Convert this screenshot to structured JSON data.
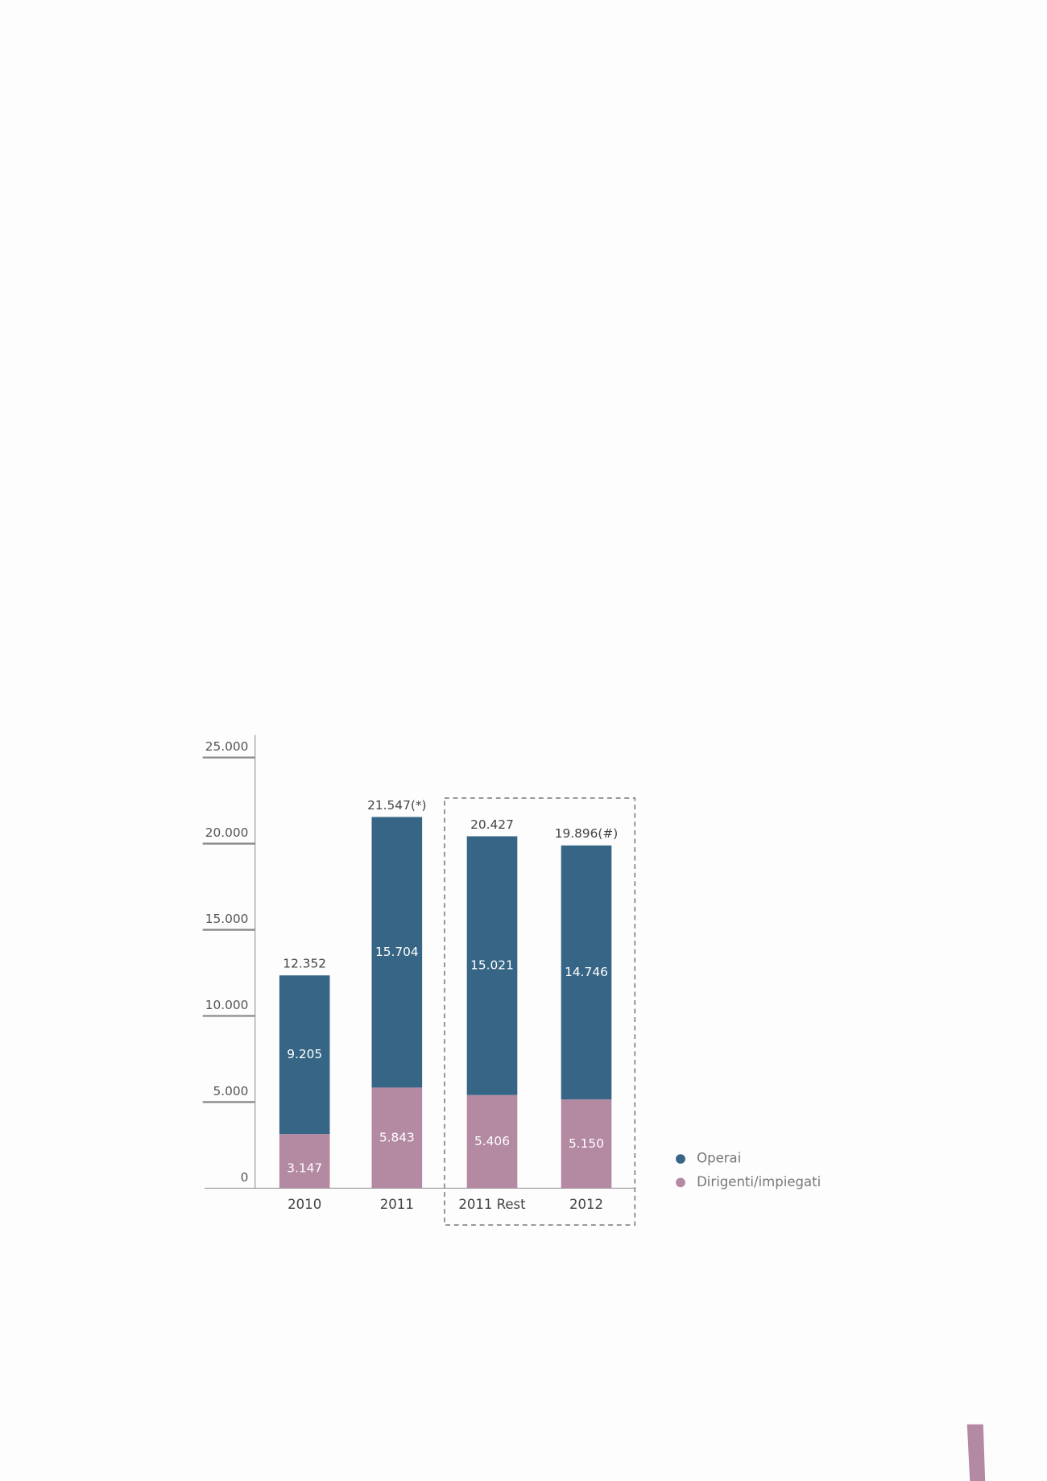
{
  "chart_data": {
    "type": "stacked_bar",
    "categories": [
      "2010",
      "2011",
      "2011 Rest",
      "2012"
    ],
    "series": [
      {
        "name": "Dirigenti/impiegati",
        "color": "#b48aa3",
        "values": [
          3147,
          5843,
          5406,
          5150
        ],
        "value_labels": [
          "3.147",
          "5.843",
          "5.406",
          "5.150"
        ]
      },
      {
        "name": "Operai",
        "color": "#376585",
        "values": [
          9205,
          15704,
          15021,
          14746
        ],
        "value_labels": [
          "9.205",
          "15.704",
          "15.021",
          "14.746"
        ]
      }
    ],
    "totals": {
      "values": [
        12352,
        21547,
        20427,
        19896
      ],
      "value_labels": [
        "12.352",
        "21.547(*)",
        "20.427",
        "19.896(#)"
      ]
    },
    "ylim": [
      0,
      25000
    ],
    "yticks": [
      0,
      {
        "value": 5000,
        "label": "5.000"
      },
      {
        "value": 10000,
        "label": "10.000"
      },
      {
        "value": 15000,
        "label": "15.000"
      },
      {
        "value": 20000,
        "label": "20.000"
      },
      {
        "value": 25000,
        "label": "25.000"
      }
    ],
    "legend_order": [
      1,
      0
    ]
  }
}
